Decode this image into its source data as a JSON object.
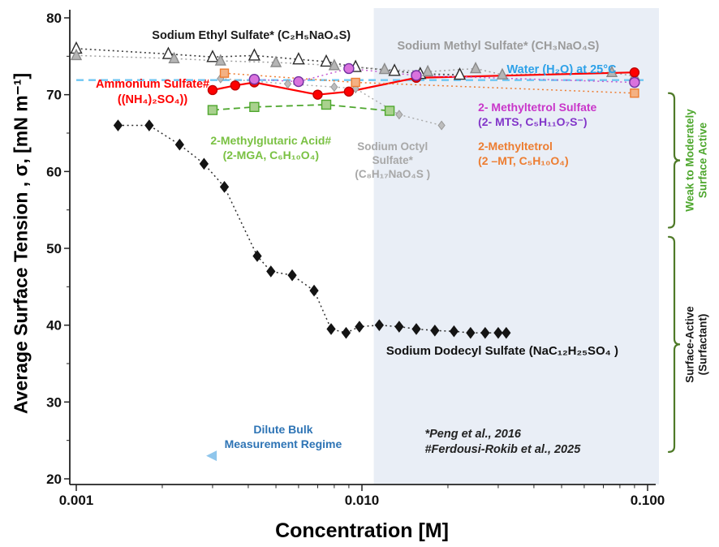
{
  "figure": {
    "background": "#ffffff",
    "shaded_region_color": "#e9eef6"
  },
  "chart_data": {
    "type": "scatter",
    "title": "",
    "xlabel": "Concentration [M]",
    "ylabel": "Average Surface Tension , σ, [mN m⁻¹]",
    "xscale": "log",
    "xlim": [
      0.001,
      0.1
    ],
    "ylim": [
      20,
      80
    ],
    "yticks": [
      20,
      30,
      40,
      50,
      60,
      70,
      80
    ],
    "xticks": [
      0.001,
      0.01,
      0.1
    ],
    "xtick_labels": [
      "0.001",
      "0.010",
      "0.100"
    ],
    "shaded_region": {
      "x_start": 0.011,
      "x_end": 0.1
    },
    "water_line": {
      "y": 71.9,
      "color": "#6ec6f2"
    },
    "series": [
      {
        "name": "Sodium Ethyl Sulfate",
        "marker": "triangle",
        "marker_fill": "#ffffff",
        "marker_stroke": "#2b2b2b",
        "size": 6.5,
        "line_color": "#3c3c3c",
        "line_style": "dotted",
        "line_width": 1.6,
        "points": [
          [
            0.001,
            76
          ],
          [
            0.0021,
            75.3
          ],
          [
            0.003,
            74.9
          ],
          [
            0.0042,
            75.1
          ],
          [
            0.006,
            74.6
          ],
          [
            0.0075,
            74.3
          ],
          [
            0.0095,
            73.6
          ],
          [
            0.013,
            73.1
          ],
          [
            0.016,
            72.7
          ],
          [
            0.022,
            72.6
          ]
        ]
      },
      {
        "name": "Sodium Methyl Sulfate",
        "marker": "triangle",
        "marker_fill": "#b5b5b5",
        "marker_stroke": "#8a8a8a",
        "size": 6,
        "line_color": "#a0a0a0",
        "line_style": "dotted",
        "line_width": 1.5,
        "points": [
          [
            0.001,
            75.1
          ],
          [
            0.0022,
            74.7
          ],
          [
            0.0032,
            74.4
          ],
          [
            0.005,
            74.2
          ],
          [
            0.008,
            73.8
          ],
          [
            0.012,
            73.3
          ],
          [
            0.017,
            73.0
          ],
          [
            0.025,
            73.4
          ],
          [
            0.031,
            72.6
          ],
          [
            0.075,
            72.9
          ],
          [
            0.09,
            72.4
          ]
        ]
      },
      {
        "name": "Sodium Octyl Sulfate",
        "marker": "diamond",
        "marker_fill": "#bdbdbd",
        "marker_stroke": "#9a9a9a",
        "size": 4,
        "line_color": "#ababab",
        "line_style": "dotted",
        "line_width": 1.4,
        "points": [
          [
            0.0032,
            72.1
          ],
          [
            0.0055,
            71.4
          ],
          [
            0.008,
            71.0
          ],
          [
            0.0095,
            70.8
          ],
          [
            0.0135,
            67.4
          ],
          [
            0.019,
            66.0
          ]
        ]
      },
      {
        "name": "Ammonium Sulfate",
        "marker": "circle",
        "marker_fill": "#fe0000",
        "marker_stroke": "#c00000",
        "size": 5.5,
        "line_color": "#fe0000",
        "line_style": "solid",
        "line_width": 2.2,
        "points": [
          [
            0.003,
            70.6
          ],
          [
            0.0036,
            71.2
          ],
          [
            0.0042,
            71.6
          ],
          [
            0.007,
            70.0
          ],
          [
            0.009,
            70.4
          ],
          [
            0.0155,
            72.2
          ],
          [
            0.09,
            72.9
          ]
        ]
      },
      {
        "name": "2-Methylglutaric Acid",
        "marker": "square",
        "marker_fill": "#a9d18e",
        "marker_stroke": "#4ea72e",
        "size": 5.5,
        "line_color": "#4ea72e",
        "line_style": "dashed",
        "line_width": 1.8,
        "points": [
          [
            0.003,
            68.0
          ],
          [
            0.0042,
            68.4
          ],
          [
            0.0075,
            68.7
          ],
          [
            0.0125,
            67.9
          ]
        ]
      },
      {
        "name": "2-Methyltetrol Sulfate",
        "marker": "circle",
        "marker_fill": "#d972dd",
        "marker_stroke": "#7030a0",
        "size": 6,
        "line_color": "#c45ad0",
        "line_style": "dotted",
        "line_width": 1.5,
        "points": [
          [
            0.0042,
            72.0
          ],
          [
            0.006,
            71.7
          ],
          [
            0.009,
            73.4
          ],
          [
            0.0155,
            72.5
          ],
          [
            0.09,
            71.6
          ]
        ]
      },
      {
        "name": "2-Methyltetrol",
        "marker": "square",
        "marker_fill": "#f4b183",
        "marker_stroke": "#ed7d31",
        "size": 5,
        "line_color": "#ed7d31",
        "line_style": "dotted",
        "line_width": 1.5,
        "points": [
          [
            0.0033,
            72.8
          ],
          [
            0.0095,
            71.6
          ],
          [
            0.09,
            70.2
          ]
        ]
      },
      {
        "name": "Sodium Dodecyl Sulfate",
        "marker": "diamond",
        "marker_fill": "#141414",
        "marker_stroke": "#141414",
        "size": 5,
        "line_color": "#2e2e2e",
        "line_style": "dotted",
        "line_width": 1.5,
        "points": [
          [
            0.0014,
            66
          ],
          [
            0.0018,
            66
          ],
          [
            0.0023,
            63.5
          ],
          [
            0.0028,
            61
          ],
          [
            0.0033,
            58
          ],
          [
            0.0043,
            49
          ],
          [
            0.0048,
            47
          ],
          [
            0.0057,
            46.5
          ],
          [
            0.0068,
            44.5
          ],
          [
            0.0078,
            39.5
          ],
          [
            0.0088,
            39
          ],
          [
            0.0098,
            39.8
          ],
          [
            0.0115,
            40
          ],
          [
            0.0135,
            39.8
          ],
          [
            0.0155,
            39.5
          ],
          [
            0.018,
            39.3
          ],
          [
            0.021,
            39.2
          ],
          [
            0.024,
            39
          ],
          [
            0.027,
            39
          ],
          [
            0.03,
            39
          ],
          [
            0.032,
            39
          ]
        ]
      }
    ],
    "annotations": [
      {
        "name": "sodium-ethyl-sulfate-label",
        "lines": [
          "Sodium Ethyl Sulfate* (C₂H₅NaO₄S)"
        ],
        "x": 0.0041,
        "y": 77.6,
        "color": "#1a1a1a",
        "size": 14.5,
        "weight": 700,
        "anchor": "center"
      },
      {
        "name": "sodium-methyl-sulfate-label",
        "lines": [
          "Sodium Methyl Sulfate* (CH₃NaO₄S)"
        ],
        "x": 0.03,
        "y": 76.3,
        "color": "#9b9b9b",
        "size": 14.5,
        "weight": 700,
        "anchor": "center"
      },
      {
        "name": "water-label",
        "lines": [
          "Water (H₂O) at 25°C"
        ],
        "x": 0.05,
        "y": 73.2,
        "color": "#2da1e8",
        "size": 14.5,
        "weight": 700,
        "anchor": "center"
      },
      {
        "name": "ammonium-sulfate-label",
        "lines": [
          "Ammonium Sulfate#",
          "((NH₄)₂SO₄))"
        ],
        "x": 0.00185,
        "y": 71.3,
        "color": "#fe0000",
        "size": 14.5,
        "weight": 700,
        "anchor": "center"
      },
      {
        "name": "mga-label",
        "lines": [
          "2-Methylglutaric Acid#",
          "(2-MGA, C₆H₁₀O₄)"
        ],
        "x": 0.0048,
        "y": 64.1,
        "color": "#7ac143",
        "size": 14,
        "weight": 700,
        "anchor": "center"
      },
      {
        "name": "octyl-sulfate-label",
        "lines": [
          "Sodium Octyl",
          "Sulfate*",
          "(C₈H₁₇NaO₄S )"
        ],
        "x": 0.0128,
        "y": 63.3,
        "color": "#a8a8a8",
        "size": 13.5,
        "weight": 700,
        "anchor": "center"
      },
      {
        "name": "mts-label",
        "lines": [
          "2- Methyltetrol Sulfate",
          "(2- MTS, C₅H₁₁O₇S⁻)"
        ],
        "x": 0.0255,
        "y": 68.4,
        "color": "#c936c9",
        "line_colors": [
          "#c936c9",
          "#8236c9"
        ],
        "size": 14,
        "weight": 700,
        "anchor": "left"
      },
      {
        "name": "mt-label",
        "lines": [
          "2-Methyltetrol",
          "(2 –MT, C₅H₁₀O₄)"
        ],
        "x": 0.0255,
        "y": 63.3,
        "color": "#ed7d31",
        "size": 14,
        "weight": 700,
        "anchor": "left"
      },
      {
        "name": "sds-label",
        "lines": [
          "Sodium Dodecyl Sulfate (NaC₁₂H₂₅SO₄ )"
        ],
        "x": 0.031,
        "y": 36.6,
        "color": "#111111",
        "size": 15,
        "weight": 700,
        "anchor": "center"
      },
      {
        "name": "dilute-regime-label",
        "lines": [
          "Dilute Bulk",
          "Measurement Regime"
        ],
        "x": 0.0053,
        "y": 26.4,
        "color": "#2e74b5",
        "size": 14,
        "weight": 700,
        "anchor": "center"
      },
      {
        "name": "citations",
        "lines": [
          "*Peng et al., 2016",
          "#Ferdousi-Rokib et al., 2025"
        ],
        "x": 0.0166,
        "y": 25.8,
        "color": "#222222",
        "size": 14.5,
        "weight": 600,
        "style": "italic",
        "anchor": "left"
      }
    ],
    "arrow": {
      "x_head": 0.00285,
      "x_tail": 0.0105,
      "y": 23.0,
      "head_color": "#8fc6ec",
      "tail_color": "#ddeffb"
    },
    "braces": [
      {
        "name": "weak-to-moderately-brace",
        "y_top": 70.2,
        "y_bottom": 52.7,
        "color": "#4f7a28",
        "label_lines": [
          "Weak to Moderately",
          "Surface Active"
        ],
        "label_color": "#4ea72e"
      },
      {
        "name": "surfactant-brace",
        "y_top": 51.5,
        "y_bottom": 23.5,
        "color": "#4f7a28",
        "label_lines": [
          "Surface-Active",
          "(Surfactant)"
        ],
        "label_color": "#1a1a1a"
      }
    ]
  }
}
